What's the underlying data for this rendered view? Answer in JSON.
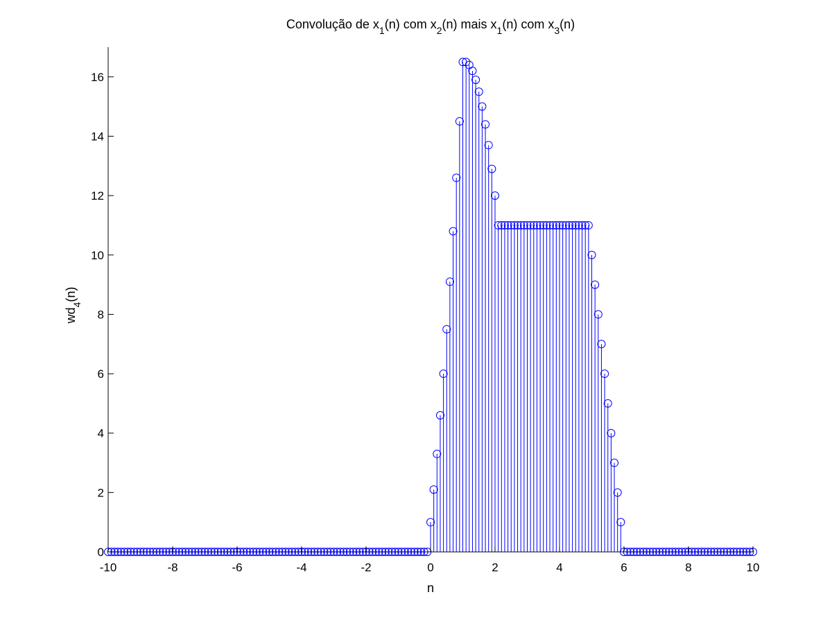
{
  "chart_data": {
    "type": "stem",
    "title_parts": [
      {
        "t": "Convolução  de x",
        "sub": false
      },
      {
        "t": "1",
        "sub": true
      },
      {
        "t": "(n) com x",
        "sub": false
      },
      {
        "t": "2",
        "sub": true
      },
      {
        "t": "(n) mais x",
        "sub": false
      },
      {
        "t": "1",
        "sub": true
      },
      {
        "t": "(n) com x",
        "sub": false
      },
      {
        "t": "3",
        "sub": true
      },
      {
        "t": "(n)",
        "sub": false
      }
    ],
    "xlabel": "n",
    "ylabel_parts": [
      {
        "t": "wd",
        "sub": false
      },
      {
        "t": "4",
        "sub": true
      },
      {
        "t": "(n)",
        "sub": false
      }
    ],
    "xlim": [
      -10,
      10
    ],
    "ylim": [
      0,
      17
    ],
    "xticks": [
      -10,
      -8,
      -6,
      -4,
      -2,
      0,
      2,
      4,
      6,
      8,
      10
    ],
    "xtick_labels": [
      "-10",
      "-8",
      "-6",
      "-4",
      "-2",
      "0",
      "2",
      "4",
      "6",
      "8",
      "10"
    ],
    "yticks": [
      0,
      2,
      4,
      6,
      8,
      10,
      12,
      14,
      16
    ],
    "ytick_labels": [
      "0",
      "2",
      "4",
      "6",
      "8",
      "10",
      "12",
      "14",
      "16"
    ],
    "grid": false,
    "marker": "circle",
    "color": "#0000ff",
    "x_start": -10,
    "x_step": 0.1,
    "values": [
      0,
      0,
      0,
      0,
      0,
      0,
      0,
      0,
      0,
      0,
      0,
      0,
      0,
      0,
      0,
      0,
      0,
      0,
      0,
      0,
      0,
      0,
      0,
      0,
      0,
      0,
      0,
      0,
      0,
      0,
      0,
      0,
      0,
      0,
      0,
      0,
      0,
      0,
      0,
      0,
      0,
      0,
      0,
      0,
      0,
      0,
      0,
      0,
      0,
      0,
      0,
      0,
      0,
      0,
      0,
      0,
      0,
      0,
      0,
      0,
      0,
      0,
      0,
      0,
      0,
      0,
      0,
      0,
      0,
      0,
      0,
      0,
      0,
      0,
      0,
      0,
      0,
      0,
      0,
      0,
      0,
      0,
      0,
      0,
      0,
      0,
      0,
      0,
      0,
      0,
      0,
      0,
      0,
      0,
      0,
      0,
      0,
      0,
      0,
      0,
      1,
      2.1,
      3.3,
      4.6,
      6,
      7.5,
      9.1,
      10.8,
      12.6,
      14.5,
      16.5,
      16.5,
      16.4,
      16.2,
      15.9,
      15.5,
      15,
      14.4,
      13.7,
      12.9,
      12,
      11,
      11,
      11,
      11,
      11,
      11,
      11,
      11,
      11,
      11,
      11,
      11,
      11,
      11,
      11,
      11,
      11,
      11,
      11,
      11,
      11,
      11,
      11,
      11,
      11,
      11,
      11,
      11,
      11,
      10,
      9,
      8,
      7,
      6,
      5,
      4,
      3,
      2,
      1,
      0,
      0,
      0,
      0,
      0,
      0,
      0,
      0,
      0,
      0,
      0,
      0,
      0,
      0,
      0,
      0,
      0,
      0,
      0,
      0,
      0,
      0,
      0,
      0,
      0,
      0,
      0,
      0,
      0,
      0,
      0,
      0,
      0,
      0,
      0,
      0,
      0,
      0,
      0,
      0,
      0
    ]
  }
}
